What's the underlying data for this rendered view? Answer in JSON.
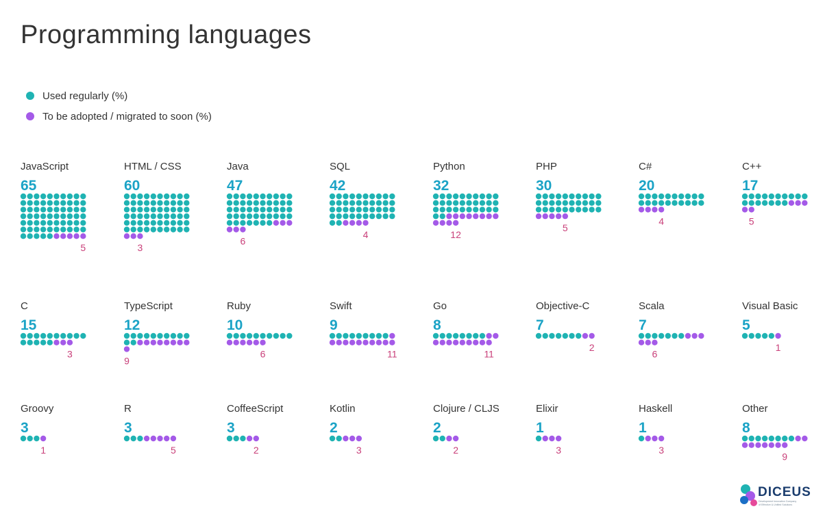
{
  "title": "Programming languages",
  "legend": {
    "regular_label": "Used regularly (%)",
    "adopt_label": "To be adopted / migrated to soon (%)"
  },
  "colors": {
    "regular": "#1fb3b3",
    "adopt": "#a45ae8",
    "regular_value": "#1ba3c6",
    "adopt_value": "#c9407a"
  },
  "logo": {
    "text": "DICEUS",
    "tagline": "Development Innovation Company of Effective & Unified Solutions"
  },
  "chart_data": {
    "type": "waffle",
    "series": [
      {
        "name": "Used regularly (%)",
        "key": "regular"
      },
      {
        "name": "To be adopted / migrated to soon (%)",
        "key": "adopt"
      }
    ],
    "dots_per_row": 10,
    "categories": [
      {
        "label": "JavaScript",
        "regular": 65,
        "adopt": 5
      },
      {
        "label": "HTML / CSS",
        "regular": 60,
        "adopt": 3
      },
      {
        "label": "Java",
        "regular": 47,
        "adopt": 6
      },
      {
        "label": "SQL",
        "regular": 42,
        "adopt": 4
      },
      {
        "label": "Python",
        "regular": 32,
        "adopt": 12
      },
      {
        "label": "PHP",
        "regular": 30,
        "adopt": 5
      },
      {
        "label": "C#",
        "regular": 20,
        "adopt": 4
      },
      {
        "label": "C++",
        "regular": 17,
        "adopt": 5
      },
      {
        "label": "C",
        "regular": 15,
        "adopt": 3
      },
      {
        "label": "TypeScript",
        "regular": 12,
        "adopt": 9
      },
      {
        "label": "Ruby",
        "regular": 10,
        "adopt": 6
      },
      {
        "label": "Swift",
        "regular": 9,
        "adopt": 11
      },
      {
        "label": "Go",
        "regular": 8,
        "adopt": 11
      },
      {
        "label": "Objective-C",
        "regular": 7,
        "adopt": 2
      },
      {
        "label": "Scala",
        "regular": 7,
        "adopt": 6
      },
      {
        "label": "Visual Basic",
        "regular": 5,
        "adopt": 1
      },
      {
        "label": "Groovy",
        "regular": 3,
        "adopt": 1
      },
      {
        "label": "R",
        "regular": 3,
        "adopt": 5
      },
      {
        "label": "CoffeeScript",
        "regular": 3,
        "adopt": 2
      },
      {
        "label": "Kotlin",
        "regular": 2,
        "adopt": 3
      },
      {
        "label": "Clojure / CLJS",
        "regular": 2,
        "adopt": 2
      },
      {
        "label": "Elixir",
        "regular": 1,
        "adopt": 3
      },
      {
        "label": "Haskell",
        "regular": 1,
        "adopt": 3
      },
      {
        "label": "Other",
        "regular": 8,
        "adopt": 9
      }
    ]
  }
}
